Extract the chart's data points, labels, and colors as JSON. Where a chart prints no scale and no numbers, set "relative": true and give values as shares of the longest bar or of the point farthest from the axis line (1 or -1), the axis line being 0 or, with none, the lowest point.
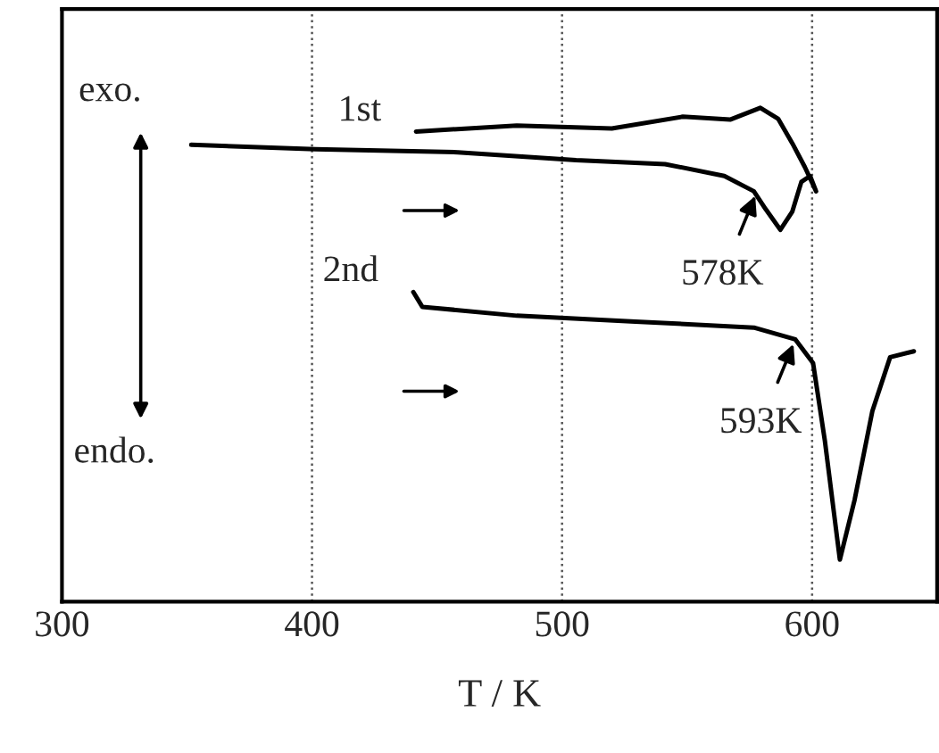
{
  "chart_data": {
    "type": "line",
    "xlabel": "T / K",
    "relative": true,
    "xlim": [
      300,
      650
    ],
    "xticks": [
      300,
      400,
      500,
      600
    ],
    "grid": "x",
    "marker": "none",
    "line_style": "solid",
    "series": [
      {
        "name": "1st",
        "color": "#000000",
        "x": [
          441.6,
          481.9,
          519.9,
          548.3,
          567.2,
          579.3,
          586.4,
          592.1,
          597.1,
          601.6,
          599.2,
          595.7,
          592.1,
          587.3,
          581.4,
          576.7,
          564.9,
          541.2,
          505.6,
          458.3,
          401.4,
          351.7
        ],
        "values": [
          0.952,
          0.964,
          0.958,
          0.982,
          0.976,
          1.0,
          0.978,
          0.928,
          0.88,
          0.831,
          0.862,
          0.85,
          0.79,
          0.753,
          0.795,
          0.831,
          0.862,
          0.886,
          0.894,
          0.91,
          0.916,
          0.925
        ]
      },
      {
        "name": "2nd",
        "color": "#000000",
        "x": [
          440.5,
          444.1,
          481.9,
          529.3,
          576.7,
          593.3,
          600.4,
          605.1,
          611.1,
          617.0,
          624.1,
          631.2,
          640.7
        ],
        "values": [
          0.627,
          0.597,
          0.579,
          0.567,
          0.555,
          0.531,
          0.483,
          0.326,
          0.085,
          0.206,
          0.386,
          0.495,
          0.507
        ]
      }
    ],
    "annotations": [
      "exo.",
      "endo.",
      {
        "text": "578K",
        "x": 578,
        "y": 0.831
      },
      {
        "text": "593K",
        "x": 593.3,
        "y": 0.531
      }
    ]
  }
}
